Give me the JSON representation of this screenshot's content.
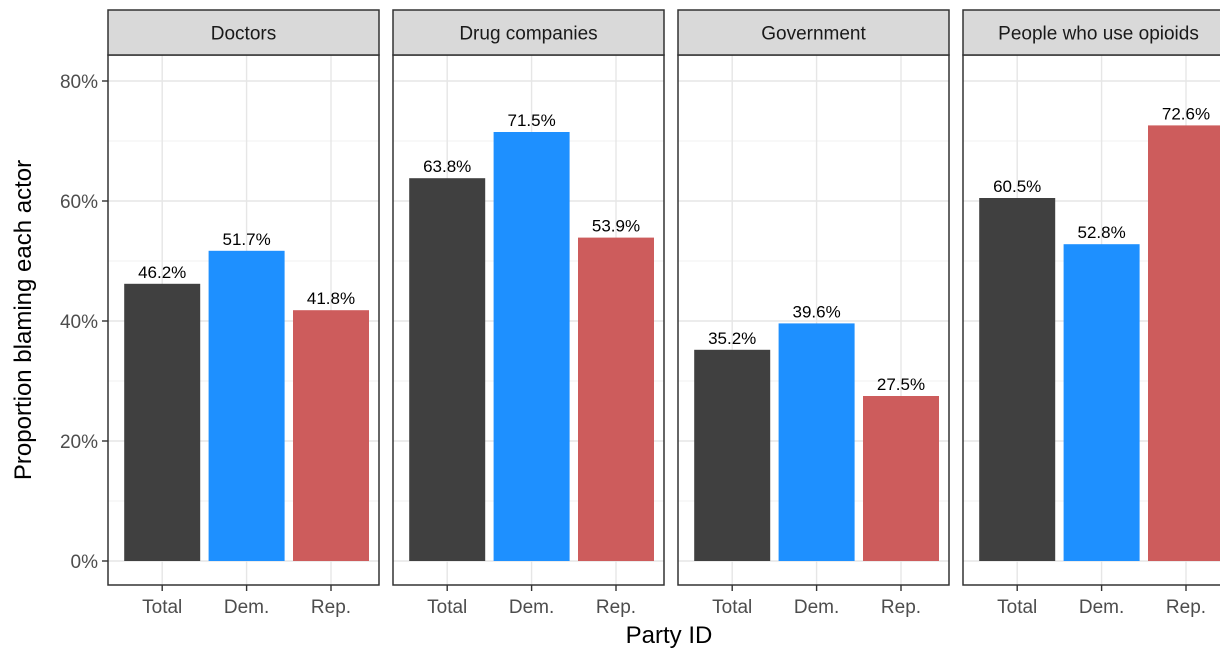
{
  "chart_data": {
    "type": "bar",
    "xlabel": "Party ID",
    "ylabel": "Proportion blaming each actor",
    "ylim": [
      0,
      0.8
    ],
    "y_ticks": [
      {
        "value": 0,
        "label": "0%"
      },
      {
        "value": 0.2,
        "label": "20%"
      },
      {
        "value": 0.4,
        "label": "40%"
      },
      {
        "value": 0.6,
        "label": "60%"
      },
      {
        "value": 0.8,
        "label": "80%"
      }
    ],
    "grid": true,
    "categories": [
      "Total",
      "Dem.",
      "Rep."
    ],
    "colors": [
      "#404040",
      "#1e90ff",
      "#cd5c5c"
    ],
    "panels": [
      {
        "name": "Doctors",
        "values": [
          0.462,
          0.517,
          0.418
        ],
        "labels": [
          "46.2%",
          "51.7%",
          "41.8%"
        ]
      },
      {
        "name": "Drug companies",
        "values": [
          0.638,
          0.715,
          0.539
        ],
        "labels": [
          "63.8%",
          "71.5%",
          "53.9%"
        ]
      },
      {
        "name": "Government",
        "values": [
          0.352,
          0.396,
          0.275
        ],
        "labels": [
          "35.2%",
          "39.6%",
          "27.5%"
        ]
      },
      {
        "name": "People who use opioids",
        "values": [
          0.605,
          0.528,
          0.726
        ],
        "labels": [
          "60.5%",
          "52.8%",
          "72.6%"
        ]
      }
    ]
  }
}
